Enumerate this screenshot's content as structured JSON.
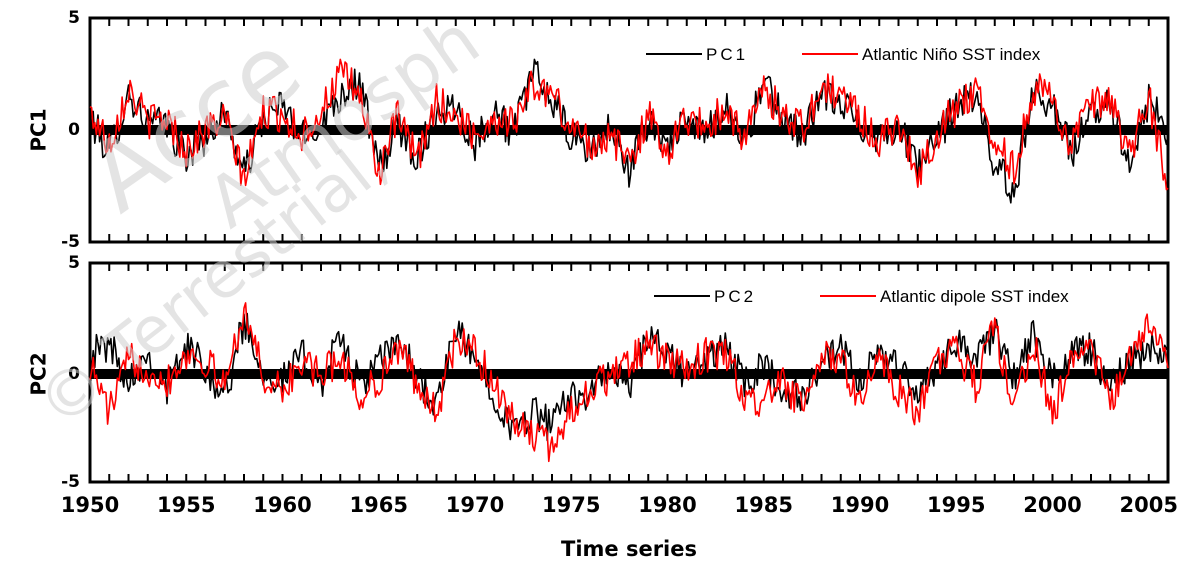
{
  "chart_data": {
    "type": "line",
    "xlabel": "Time series",
    "xlim": [
      1950,
      2006
    ],
    "x_ticks": [
      "1950",
      "1955",
      "1960",
      "1965",
      "1970",
      "1975",
      "1980",
      "1985",
      "1990",
      "1995",
      "2000",
      "2005"
    ],
    "colors": {
      "pc": "#000000",
      "index": "#ff0000",
      "zero_line": "#000000"
    },
    "panels": [
      {
        "ylabel": "PC1",
        "ylim": [
          -5,
          5
        ],
        "y_ticks": [
          "5",
          "0",
          "-5"
        ],
        "legend_position": "top-right",
        "series": [
          {
            "name": "PC1",
            "color": "#000000",
            "x": [
              1950,
              1951,
              1952,
              1953,
              1954,
              1955,
              1956,
              1957,
              1958,
              1959,
              1960,
              1961,
              1962,
              1963,
              1964,
              1965,
              1966,
              1967,
              1968,
              1969,
              1970,
              1971,
              1972,
              1973,
              1974,
              1975,
              1976,
              1977,
              1978,
              1979,
              1980,
              1981,
              1982,
              1983,
              1984,
              1985,
              1986,
              1987,
              1988,
              1989,
              1990,
              1991,
              1992,
              1993,
              1994,
              1995,
              1996,
              1997,
              1998,
              1999,
              2000,
              2001,
              2002,
              2003,
              2004,
              2005,
              2006
            ],
            "y": [
              0.5,
              -1.0,
              1.6,
              0.3,
              0.2,
              -1.2,
              -0.3,
              0.8,
              -2.0,
              0.5,
              1.1,
              -0.4,
              0.3,
              1.6,
              2.2,
              -1.8,
              0.2,
              -1.2,
              0.8,
              1.1,
              -0.6,
              0.9,
              -0.2,
              2.6,
              1.3,
              -0.4,
              -0.9,
              0.1,
              -1.8,
              0.4,
              -0.6,
              0.3,
              -0.2,
              1.2,
              -0.6,
              2.1,
              0.5,
              -0.2,
              1.5,
              1.2,
              0.3,
              -0.3,
              0.2,
              -1.6,
              -0.5,
              1.2,
              1.5,
              -1.5,
              -2.8,
              1.8,
              1.2,
              -1.0,
              0.6,
              1.4,
              -1.6,
              1.3,
              -0.2
            ]
          },
          {
            "name": "Atlantic Niño SST index",
            "color": "#ff0000",
            "x": [
              1950,
              1951,
              1952,
              1953,
              1954,
              1955,
              1956,
              1957,
              1958,
              1959,
              1960,
              1961,
              1962,
              1963,
              1964,
              1965,
              1966,
              1967,
              1968,
              1969,
              1970,
              1971,
              1972,
              1973,
              1974,
              1975,
              1976,
              1977,
              1978,
              1979,
              1980,
              1981,
              1982,
              1983,
              1984,
              1985,
              1986,
              1987,
              1988,
              1989,
              1990,
              1991,
              1992,
              1993,
              1994,
              1995,
              1996,
              1997,
              1998,
              1999,
              2000,
              2001,
              2002,
              2003,
              2004,
              2005,
              2006
            ],
            "y": [
              0.8,
              -0.6,
              1.9,
              0.4,
              0.5,
              -0.9,
              0.0,
              0.5,
              -2.2,
              0.8,
              0.7,
              -0.2,
              0.8,
              2.5,
              1.6,
              -1.9,
              0.6,
              -1.4,
              1.3,
              0.6,
              -0.2,
              0.5,
              0.4,
              2.0,
              1.6,
              0.1,
              -0.6,
              -0.3,
              -1.4,
              0.6,
              -0.9,
              0.6,
              0.1,
              1.0,
              -0.3,
              1.7,
              0.8,
              0.1,
              1.8,
              1.6,
              0.6,
              -0.6,
              0.5,
              -2.1,
              -0.1,
              1.0,
              1.8,
              -0.5,
              -1.8,
              1.9,
              1.4,
              -0.7,
              1.1,
              1.2,
              -1.2,
              1.5,
              -2.6
            ]
          }
        ]
      },
      {
        "ylabel": "PC2",
        "ylim": [
          -5,
          5
        ],
        "y_ticks": [
          "5",
          "0",
          "-5"
        ],
        "legend_position": "top-right",
        "series": [
          {
            "name": "PC2",
            "color": "#000000",
            "x": [
              1950,
              1951,
              1952,
              1953,
              1954,
              1955,
              1956,
              1957,
              1958,
              1959,
              1960,
              1961,
              1962,
              1963,
              1964,
              1965,
              1966,
              1967,
              1968,
              1969,
              1970,
              1971,
              1972,
              1973,
              1974,
              1975,
              1976,
              1977,
              1978,
              1979,
              1980,
              1981,
              1982,
              1983,
              1984,
              1985,
              1986,
              1987,
              1988,
              1989,
              1990,
              1991,
              1992,
              1993,
              1994,
              1995,
              1996,
              1997,
              1998,
              1999,
              2000,
              2001,
              2002,
              2003,
              2004,
              2005,
              2006
            ],
            "y": [
              0.8,
              1.3,
              -0.3,
              0.9,
              -0.7,
              1.2,
              0.3,
              -1.2,
              2.4,
              0.1,
              -0.4,
              0.8,
              -0.5,
              1.6,
              -0.6,
              0.4,
              1.5,
              -0.2,
              -1.6,
              1.9,
              0.6,
              -0.9,
              -2.8,
              -1.7,
              -2.5,
              -0.9,
              -1.0,
              0.2,
              -0.7,
              1.6,
              0.8,
              -0.1,
              0.5,
              1.3,
              -0.6,
              0.4,
              -0.9,
              -1.1,
              0.3,
              1.0,
              -0.5,
              0.8,
              0.4,
              -1.1,
              0.3,
              1.5,
              0.6,
              1.9,
              -0.3,
              1.7,
              -0.4,
              0.9,
              1.1,
              -0.6,
              0.5,
              1.2,
              1.0
            ]
          },
          {
            "name": "Atlantic dipole SST index",
            "color": "#ff0000",
            "x": [
              1950,
              1951,
              1952,
              1953,
              1954,
              1955,
              1956,
              1957,
              1958,
              1959,
              1960,
              1961,
              1962,
              1963,
              1964,
              1965,
              1966,
              1967,
              1968,
              1969,
              1970,
              1971,
              1972,
              1973,
              1974,
              1975,
              1976,
              1977,
              1978,
              1979,
              1980,
              1981,
              1982,
              1983,
              1984,
              1985,
              1986,
              1987,
              1988,
              1989,
              1990,
              1991,
              1992,
              1993,
              1994,
              1995,
              1996,
              1997,
              1998,
              1999,
              2000,
              2001,
              2002,
              2003,
              2004,
              2005,
              2006
            ],
            "y": [
              0.4,
              -1.8,
              0.6,
              0.2,
              -0.4,
              0.9,
              0.5,
              -0.6,
              3.0,
              -0.2,
              -0.9,
              0.5,
              -0.2,
              0.8,
              -1.2,
              -0.3,
              1.1,
              -0.4,
              -1.9,
              1.5,
              0.9,
              -0.5,
              -2.3,
              -2.8,
              -3.5,
              -1.6,
              -0.8,
              -0.2,
              0.5,
              1.2,
              0.5,
              0.2,
              0.8,
              0.9,
              -1.2,
              -1.3,
              -0.5,
              -1.6,
              0.6,
              0.7,
              -1.3,
              0.5,
              -0.8,
              -1.8,
              0.6,
              1.0,
              -0.6,
              2.1,
              -1.6,
              1.4,
              -1.9,
              0.5,
              1.4,
              -1.6,
              0.9,
              2.3,
              0.2
            ]
          }
        ]
      }
    ]
  }
}
